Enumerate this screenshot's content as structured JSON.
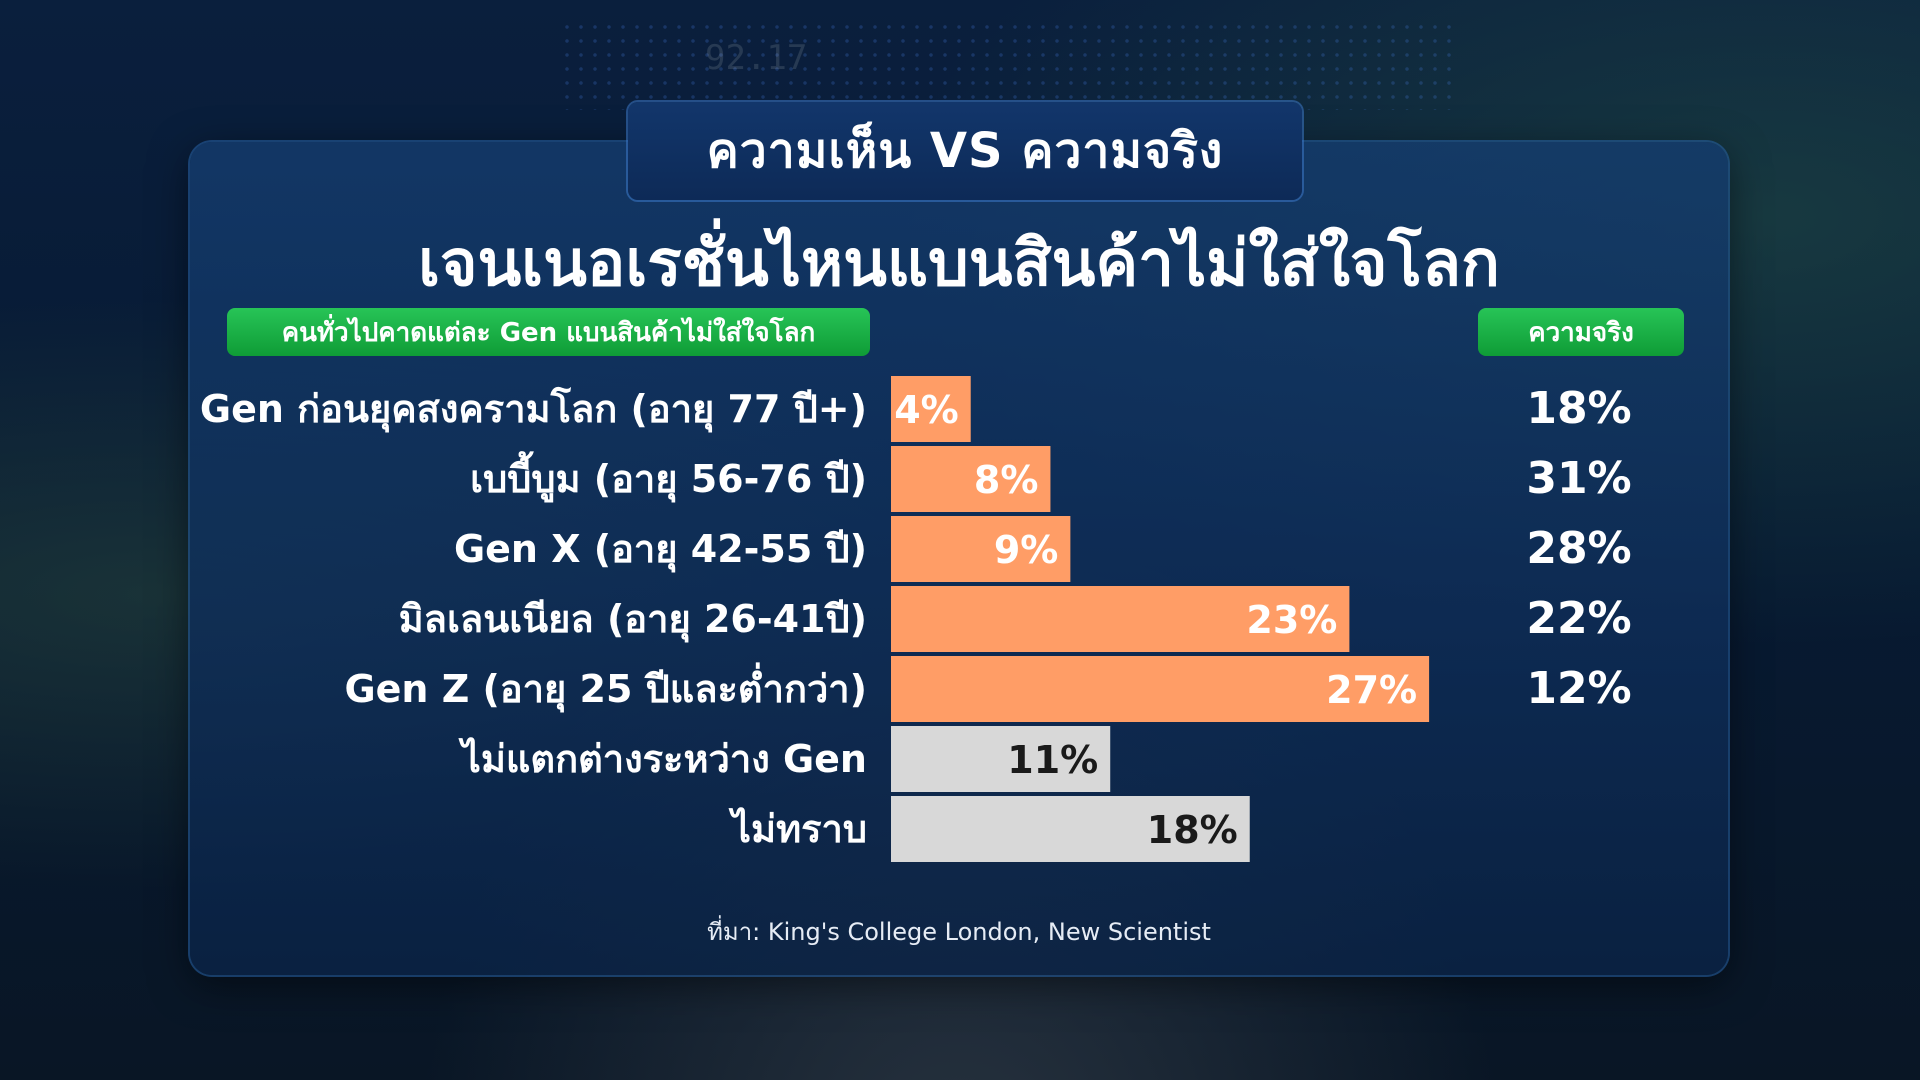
{
  "badge_title": "ความเห็น VS ความจริง",
  "headline": "เจนเนอเรชั่นไหนแบนสินค้าไม่ใส่ใจโลก",
  "legend_left": "คนทั่วไปคาดแต่ละ Gen แบนสินค้าไม่ใส่ใจโลก",
  "legend_right": "ความจริง",
  "source": "ที่มา: King's College London, New Scientist",
  "background_text": "92.17",
  "colors": {
    "perceived_bar": "#FF9D66",
    "neutral_bar": "#D8D8D8",
    "accent_green": "#1FB34A",
    "panel": "#0F3A70"
  },
  "chart_data": {
    "type": "bar",
    "orientation": "horizontal",
    "categories": [
      "Gen ก่อนยุคสงครามโลก (อายุ 77 ปี+)",
      "เบบี้บูม (อายุ 56-76 ปี)",
      "Gen X (อายุ 42-55 ปี)",
      "มิลเลนเนียล (อายุ 26-41ปี)",
      "Gen Z (อายุ 25 ปีและต่ำกว่า)",
      "ไม่แตกต่างระหว่าง Gen",
      "ไม่ทราบ"
    ],
    "series": [
      {
        "name": "คนทั่วไปคาดแต่ละ Gen แบนสินค้าไม่ใส่ใจโลก",
        "values": [
          4,
          8,
          9,
          23,
          27,
          11,
          18
        ],
        "labels": [
          "4%",
          "8%",
          "9%",
          "23%",
          "27%",
          "11%",
          "18%"
        ],
        "bar_colors": [
          "#FF9D66",
          "#FF9D66",
          "#FF9D66",
          "#FF9D66",
          "#FF9D66",
          "#D8D8D8",
          "#D8D8D8"
        ]
      },
      {
        "name": "ความจริง",
        "values": [
          18,
          31,
          28,
          22,
          12,
          null,
          null
        ],
        "labels": [
          "18%",
          "31%",
          "28%",
          "22%",
          "12%",
          "",
          ""
        ]
      }
    ],
    "unit": "%",
    "xlim": [
      0,
      30
    ]
  }
}
